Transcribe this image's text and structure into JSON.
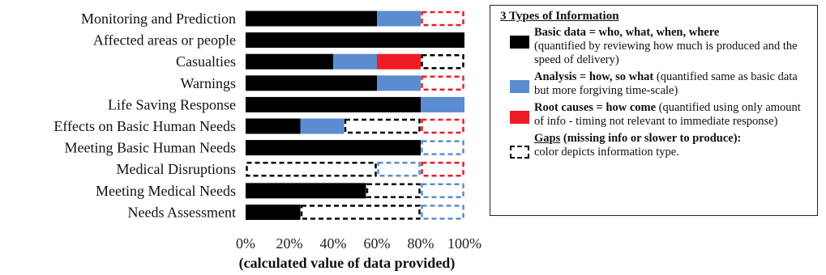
{
  "chart_data": {
    "type": "bar",
    "orientation": "horizontal",
    "stacked": true,
    "categories": [
      "Monitoring and Prediction",
      "Affected areas or people",
      "Casualties",
      "Warnings",
      "Life Saving Response",
      "Effects on Basic Human Needs",
      "Meeting Basic Human Needs",
      "Medical Disruptions",
      "Meeting Medical Needs",
      "Needs Assessment"
    ],
    "segments": [
      [
        {
          "type": "basic",
          "from": 0,
          "to": 60,
          "gap": false
        },
        {
          "type": "analysis",
          "from": 60,
          "to": 80,
          "gap": false
        },
        {
          "type": "root",
          "from": 80,
          "to": 100,
          "gap": true
        }
      ],
      [
        {
          "type": "basic",
          "from": 0,
          "to": 100,
          "gap": false
        }
      ],
      [
        {
          "type": "basic",
          "from": 0,
          "to": 40,
          "gap": false
        },
        {
          "type": "analysis",
          "from": 40,
          "to": 60,
          "gap": false
        },
        {
          "type": "root",
          "from": 60,
          "to": 80,
          "gap": false
        },
        {
          "type": "basic",
          "from": 80,
          "to": 100,
          "gap": true
        }
      ],
      [
        {
          "type": "basic",
          "from": 0,
          "to": 60,
          "gap": false
        },
        {
          "type": "analysis",
          "from": 60,
          "to": 80,
          "gap": false
        },
        {
          "type": "root",
          "from": 80,
          "to": 100,
          "gap": true
        }
      ],
      [
        {
          "type": "basic",
          "from": 0,
          "to": 80,
          "gap": false
        },
        {
          "type": "analysis",
          "from": 80,
          "to": 100,
          "gap": false
        }
      ],
      [
        {
          "type": "basic",
          "from": 0,
          "to": 25,
          "gap": false
        },
        {
          "type": "analysis",
          "from": 25,
          "to": 45,
          "gap": false
        },
        {
          "type": "basic",
          "from": 45,
          "to": 80,
          "gap": true
        },
        {
          "type": "root",
          "from": 80,
          "to": 100,
          "gap": true
        }
      ],
      [
        {
          "type": "basic",
          "from": 0,
          "to": 80,
          "gap": false
        },
        {
          "type": "analysis",
          "from": 80,
          "to": 100,
          "gap": true
        }
      ],
      [
        {
          "type": "basic",
          "from": 0,
          "to": 60,
          "gap": true
        },
        {
          "type": "analysis",
          "from": 60,
          "to": 80,
          "gap": true
        },
        {
          "type": "root",
          "from": 80,
          "to": 100,
          "gap": true
        }
      ],
      [
        {
          "type": "basic",
          "from": 0,
          "to": 55,
          "gap": false
        },
        {
          "type": "basic",
          "from": 55,
          "to": 80,
          "gap": true
        },
        {
          "type": "analysis",
          "from": 80,
          "to": 100,
          "gap": true
        }
      ],
      [
        {
          "type": "basic",
          "from": 0,
          "to": 25,
          "gap": false
        },
        {
          "type": "basic",
          "from": 25,
          "to": 80,
          "gap": true
        },
        {
          "type": "analysis",
          "from": 80,
          "to": 100,
          "gap": true
        }
      ]
    ],
    "xlim": [
      0,
      100
    ],
    "xticks": [
      0,
      20,
      40,
      60,
      80,
      100
    ],
    "xtick_labels": [
      "0%",
      "20%",
      "40%",
      "60%",
      "80%",
      "100%"
    ],
    "xlabel": "(calculated value of data provided)",
    "grid": false,
    "legend_position": "right",
    "colors": {
      "basic": "#000000",
      "analysis": "#5b8cd0",
      "root": "#ee1c24"
    }
  },
  "legend": {
    "title": "3 Types of Information",
    "items": [
      {
        "kind": "basic",
        "head": "Basic data = who, what, when, where",
        "text": "(quantified by reviewing how much is produced and the speed of delivery)"
      },
      {
        "kind": "analysis",
        "head": "Analysis = how, so what",
        "text": " (quantified same as basic data but more forgiving time-scale)"
      },
      {
        "kind": "root",
        "head": "Root causes = how come",
        "text": " (quantified using only amount of info - timing not relevant to immediate response)"
      },
      {
        "kind": "gap",
        "head": "Gaps",
        "head_rest": " (missing info or slower to produce):",
        "text": "color depicts information type."
      }
    ]
  }
}
